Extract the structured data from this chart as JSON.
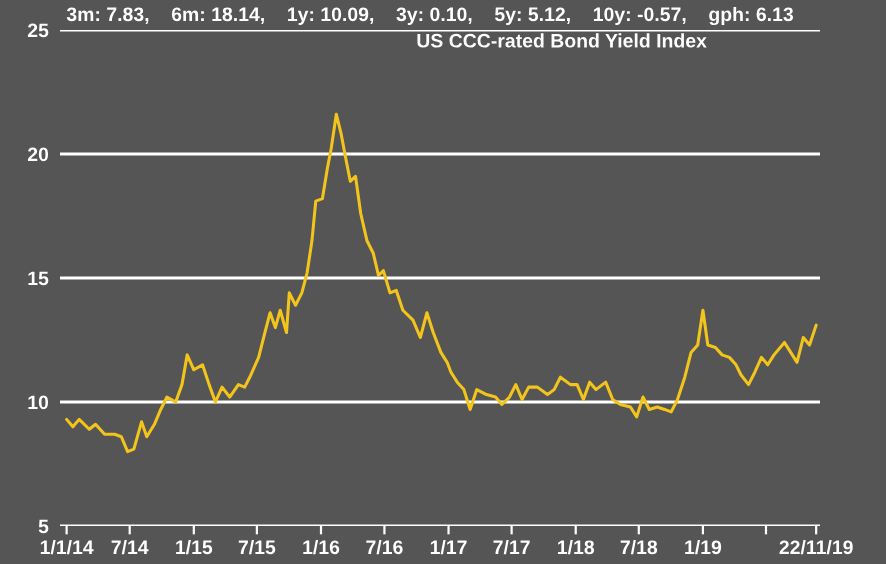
{
  "chart_data": {
    "type": "line",
    "title": "3m: 7.83,    6m: 18.14,    1y: 10.09,    3y: 0.10,    5y: 5.12,    10y: -0.57,    gph: 6.13",
    "subtitle": "US CCC-rated Bond Yield Index",
    "series": [
      {
        "color": "#f2c41c",
        "x": [
          "2014-01-01",
          "2014-01-19",
          "2014-02-06",
          "2014-03-07",
          "2014-03-25",
          "2014-04-20",
          "2014-05-19",
          "2014-06-07",
          "2014-06-25",
          "2014-07-13",
          "2014-08-04",
          "2014-08-19",
          "2014-09-10",
          "2014-09-28",
          "2014-10-16",
          "2014-11-10",
          "2014-11-28",
          "2014-12-13",
          "2015-01-01",
          "2015-01-26",
          "2015-02-14",
          "2015-03-04",
          "2015-03-23",
          "2015-04-14",
          "2015-05-09",
          "2015-05-27",
          "2015-06-14",
          "2015-07-06",
          "2015-07-24",
          "2015-08-08",
          "2015-08-23",
          "2015-09-06",
          "2015-09-24",
          "2015-10-02",
          "2015-10-20",
          "2015-11-07",
          "2015-11-22",
          "2015-12-06",
          "2015-12-17",
          "2016-01-05",
          "2016-01-19",
          "2016-01-30",
          "2016-02-14",
          "2016-02-28",
          "2016-03-11",
          "2016-03-25",
          "2016-04-09",
          "2016-04-24",
          "2016-05-12",
          "2016-05-30",
          "2016-06-14",
          "2016-06-28",
          "2016-07-17",
          "2016-08-04",
          "2016-08-23",
          "2016-09-21",
          "2016-10-12",
          "2016-10-31",
          "2016-11-18",
          "2016-12-10",
          "2016-12-28",
          "2017-01-08",
          "2017-01-26",
          "2017-02-14",
          "2017-03-04",
          "2017-03-23",
          "2017-04-20",
          "2017-05-16",
          "2017-06-03",
          "2017-06-25",
          "2017-07-13",
          "2017-07-31",
          "2017-08-19",
          "2017-09-13",
          "2017-10-12",
          "2017-10-31",
          "2017-11-18",
          "2017-12-17",
          "2018-01-05",
          "2018-01-23",
          "2018-02-10",
          "2018-02-28",
          "2018-03-28",
          "2018-04-17",
          "2018-05-09",
          "2018-06-07",
          "2018-06-25",
          "2018-07-13",
          "2018-07-31",
          "2018-08-23",
          "2018-09-13",
          "2018-10-02",
          "2018-10-20",
          "2018-11-10",
          "2018-11-28",
          "2018-12-17",
          "2019-01-01",
          "2019-01-15",
          "2019-02-06",
          "2019-02-25",
          "2019-03-18",
          "2019-04-06",
          "2019-04-20",
          "2019-05-12",
          "2019-05-30",
          "2019-06-18",
          "2019-07-06",
          "2019-07-24",
          "2019-08-23",
          "2019-09-10",
          "2019-09-28",
          "2019-10-16",
          "2019-11-03",
          "2019-11-22"
        ],
        "values": [
          9.3,
          9.0,
          9.3,
          8.9,
          9.1,
          8.7,
          8.7,
          8.6,
          8.0,
          8.1,
          9.2,
          8.6,
          9.1,
          9.7,
          10.2,
          10.0,
          10.7,
          11.9,
          11.3,
          11.5,
          10.7,
          10.0,
          10.6,
          10.2,
          10.7,
          10.6,
          11.1,
          11.8,
          12.8,
          13.6,
          13.0,
          13.7,
          12.8,
          14.4,
          13.9,
          14.4,
          15.2,
          16.5,
          18.1,
          18.2,
          19.4,
          20.2,
          21.6,
          20.8,
          19.9,
          18.9,
          19.1,
          17.6,
          16.5,
          16.0,
          15.1,
          15.3,
          14.4,
          14.5,
          13.7,
          13.3,
          12.6,
          13.6,
          12.8,
          12.0,
          11.6,
          11.2,
          10.8,
          10.5,
          9.7,
          10.5,
          10.3,
          10.2,
          9.9,
          10.2,
          10.7,
          10.1,
          10.6,
          10.6,
          10.3,
          10.5,
          11.0,
          10.7,
          10.7,
          10.1,
          10.8,
          10.5,
          10.8,
          10.1,
          9.9,
          9.8,
          9.4,
          10.2,
          9.7,
          9.8,
          9.7,
          9.6,
          10.1,
          11.0,
          12.0,
          12.3,
          13.7,
          12.3,
          12.2,
          11.9,
          11.8,
          11.5,
          11.1,
          10.7,
          11.2,
          11.8,
          11.5,
          11.9,
          12.4,
          12.0,
          11.6,
          12.6,
          12.3,
          13.1
        ]
      }
    ],
    "xlim": [
      "2013-12-13",
      "2019-12-03"
    ],
    "xticks": [
      {
        "value": "2014-01-01",
        "label": "1/1/14"
      },
      {
        "value": "2014-07-01",
        "label": "7/14"
      },
      {
        "value": "2015-01-01",
        "label": "1/15"
      },
      {
        "value": "2015-07-01",
        "label": "7/15"
      },
      {
        "value": "2016-01-01",
        "label": "1/16"
      },
      {
        "value": "2016-07-01",
        "label": "7/16"
      },
      {
        "value": "2017-01-01",
        "label": "1/17"
      },
      {
        "value": "2017-07-01",
        "label": "7/17"
      },
      {
        "value": "2018-01-01",
        "label": "1/18"
      },
      {
        "value": "2018-07-01",
        "label": "7/18"
      },
      {
        "value": "2019-01-01",
        "label": "1/19"
      },
      {
        "value": "2019-07-01",
        "label": null
      },
      {
        "value": "2019-11-22",
        "label": "22/11/19"
      }
    ],
    "ylim": [
      5,
      25
    ],
    "yticks": [
      5,
      10,
      15,
      20,
      25
    ],
    "grid": "y",
    "legend": false
  }
}
